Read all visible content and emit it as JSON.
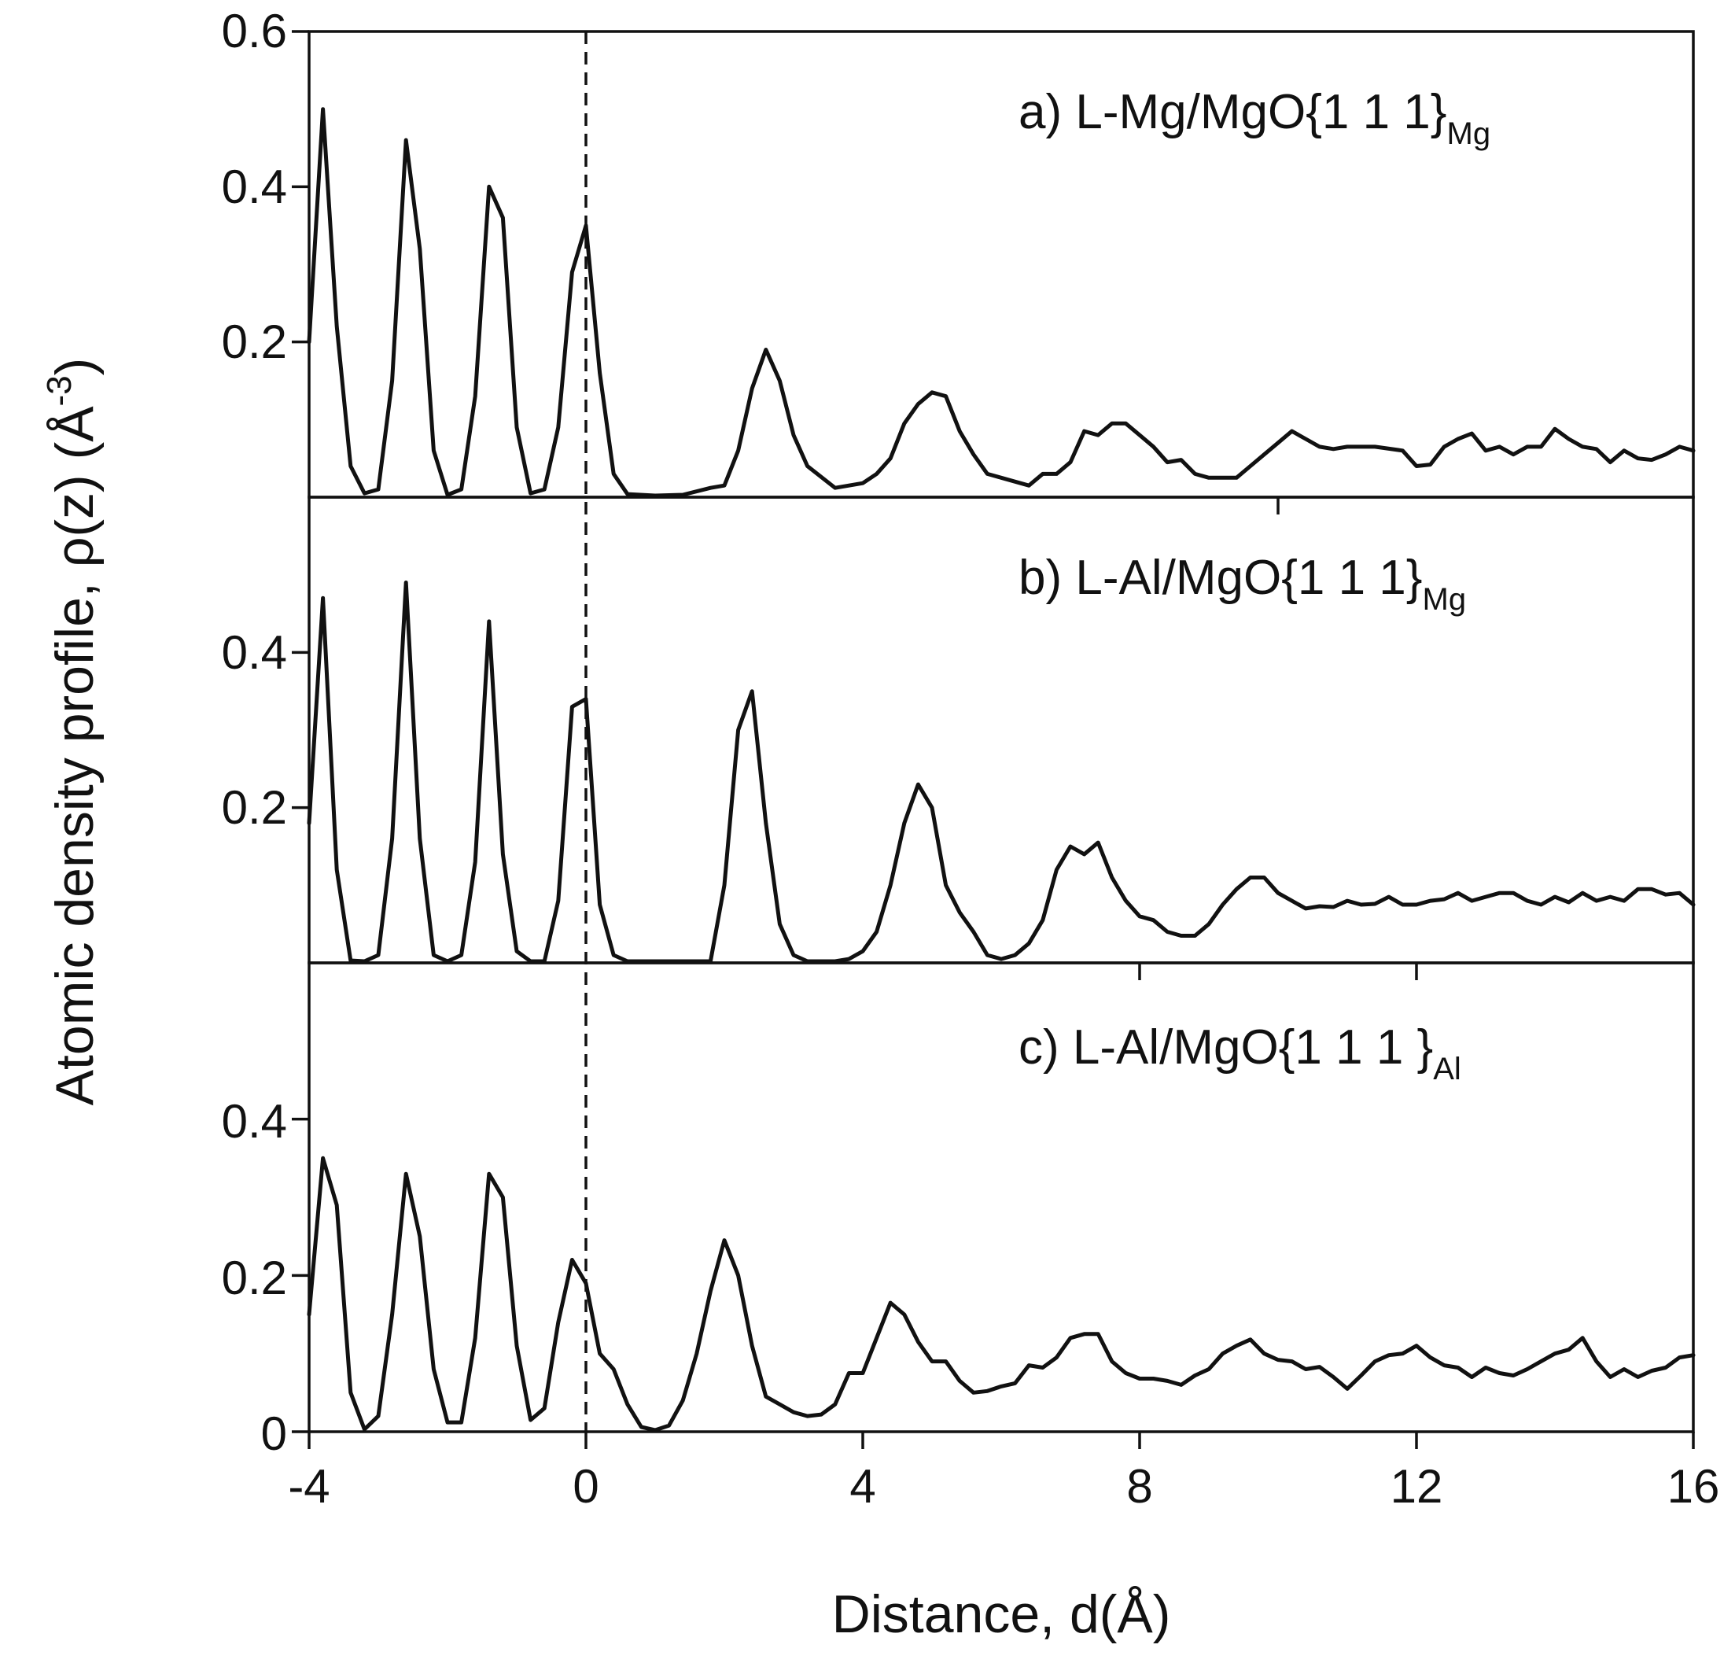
{
  "chart_data": {
    "type": "line",
    "xlabel": "Distance, d(Å)",
    "ylabel": "Atomic density profile, ρ(z) (Å",
    "ylabel_sup": "-3",
    "ylabel_close": ")",
    "xlim": [
      -4,
      16
    ],
    "x_ticks": [
      -4,
      0,
      4,
      8,
      12,
      16
    ],
    "x_tick_labels": [
      "-4",
      "0",
      "4",
      "8",
      "12",
      "16"
    ],
    "reference_line_x": 0,
    "panels": [
      {
        "label": "a) L-Mg/MgO{1 1 1}",
        "label_sub": "Mg",
        "ylim": [
          0,
          0.6
        ],
        "y_tick_labels": [
          {
            "value": 0.6,
            "text": "0.6"
          },
          {
            "value": 0.4,
            "text": "0.4"
          },
          {
            "value": 0.2,
            "text": "0.2"
          }
        ],
        "x_ticks_shown": [
          10
        ],
        "x": [
          -4.0,
          -3.8,
          -3.6,
          -3.4,
          -3.2,
          -3.0,
          -2.8,
          -2.6,
          -2.4,
          -2.2,
          -2.0,
          -1.8,
          -1.6,
          -1.4,
          -1.2,
          -1.0,
          -0.8,
          -0.6,
          -0.4,
          -0.2,
          0.0,
          0.2,
          0.4,
          0.6,
          1.0,
          1.4,
          1.8,
          2.0,
          2.2,
          2.4,
          2.6,
          2.8,
          3.0,
          3.2,
          3.6,
          3.8,
          4.0,
          4.2,
          4.4,
          4.6,
          4.8,
          5.0,
          5.2,
          5.4,
          5.6,
          5.8,
          6.0,
          6.4,
          6.6,
          6.8,
          7.0,
          7.2,
          7.4,
          7.6,
          7.8,
          8.0,
          8.2,
          8.4,
          8.6,
          8.8,
          9.0,
          9.4,
          9.6,
          9.8,
          10.0,
          10.2,
          10.4,
          10.6,
          10.8,
          11.0,
          11.4,
          11.8,
          12.0,
          12.2,
          12.4,
          12.6,
          12.8,
          13.0,
          13.2,
          13.4,
          13.6,
          13.8,
          14.0,
          14.2,
          14.4,
          14.6,
          14.8,
          15.0,
          15.2,
          15.4,
          15.6,
          15.8,
          16.0
        ],
        "y": [
          0.2,
          0.5,
          0.22,
          0.04,
          0.005,
          0.01,
          0.15,
          0.46,
          0.32,
          0.06,
          0.003,
          0.01,
          0.13,
          0.4,
          0.36,
          0.09,
          0.005,
          0.01,
          0.09,
          0.29,
          0.35,
          0.16,
          0.03,
          0.004,
          0.002,
          0.003,
          0.012,
          0.015,
          0.06,
          0.14,
          0.19,
          0.15,
          0.08,
          0.04,
          0.012,
          0.015,
          0.018,
          0.03,
          0.05,
          0.095,
          0.12,
          0.135,
          0.13,
          0.085,
          0.055,
          0.03,
          0.025,
          0.015,
          0.03,
          0.03,
          0.045,
          0.085,
          0.08,
          0.095,
          0.095,
          0.08,
          0.065,
          0.045,
          0.048,
          0.03,
          0.025,
          0.025,
          0.04,
          0.055,
          0.07,
          0.085,
          0.075,
          0.065,
          0.062,
          0.065,
          0.065,
          0.06,
          0.04,
          0.042,
          0.065,
          0.075,
          0.082,
          0.06,
          0.065,
          0.055,
          0.065,
          0.065,
          0.088,
          0.075,
          0.065,
          0.062,
          0.045,
          0.06,
          0.05,
          0.048,
          0.055,
          0.065,
          0.06
        ]
      },
      {
        "label": "b) L-Al/MgO{1 1 1}",
        "label_sub": "Mg",
        "ylim": [
          0,
          0.6
        ],
        "y_tick_labels": [
          {
            "value": 0.4,
            "text": "0.4"
          },
          {
            "value": 0.2,
            "text": "0.2"
          }
        ],
        "x_ticks_shown": [
          8,
          12
        ],
        "x": [
          -4.0,
          -3.8,
          -3.6,
          -3.4,
          -3.2,
          -3.0,
          -2.8,
          -2.6,
          -2.4,
          -2.2,
          -2.0,
          -1.8,
          -1.6,
          -1.4,
          -1.2,
          -1.0,
          -0.8,
          -0.6,
          -0.4,
          -0.2,
          0.0,
          0.2,
          0.4,
          0.6,
          1.8,
          2.0,
          2.2,
          2.4,
          2.6,
          2.8,
          3.0,
          3.2,
          3.4,
          3.6,
          3.8,
          4.0,
          4.2,
          4.4,
          4.6,
          4.8,
          5.0,
          5.2,
          5.4,
          5.6,
          5.8,
          6.0,
          6.2,
          6.4,
          6.6,
          6.8,
          7.0,
          7.2,
          7.4,
          7.6,
          7.8,
          8.0,
          8.2,
          8.4,
          8.6,
          8.8,
          9.0,
          9.2,
          9.4,
          9.6,
          9.8,
          10.0,
          10.2,
          10.4,
          10.6,
          10.8,
          11.0,
          11.2,
          11.4,
          11.6,
          11.8,
          12.0,
          12.2,
          12.4,
          12.6,
          12.8,
          13.0,
          13.2,
          13.4,
          13.6,
          13.8,
          14.0,
          14.2,
          14.4,
          14.6,
          14.8,
          15.0,
          15.2,
          15.4,
          15.6,
          15.8,
          16.0
        ],
        "y": [
          0.18,
          0.47,
          0.12,
          0.003,
          0.002,
          0.01,
          0.16,
          0.49,
          0.16,
          0.01,
          0.002,
          0.01,
          0.13,
          0.44,
          0.14,
          0.015,
          0.002,
          0.002,
          0.08,
          0.33,
          0.34,
          0.075,
          0.01,
          0.002,
          0.002,
          0.1,
          0.3,
          0.35,
          0.18,
          0.05,
          0.01,
          0.002,
          0.002,
          0.002,
          0.005,
          0.015,
          0.04,
          0.1,
          0.18,
          0.23,
          0.2,
          0.1,
          0.065,
          0.04,
          0.01,
          0.005,
          0.01,
          0.025,
          0.055,
          0.12,
          0.15,
          0.14,
          0.155,
          0.11,
          0.08,
          0.06,
          0.055,
          0.04,
          0.035,
          0.035,
          0.05,
          0.075,
          0.095,
          0.11,
          0.11,
          0.09,
          0.08,
          0.07,
          0.073,
          0.072,
          0.08,
          0.075,
          0.076,
          0.085,
          0.075,
          0.075,
          0.08,
          0.082,
          0.09,
          0.08,
          0.085,
          0.09,
          0.09,
          0.08,
          0.075,
          0.085,
          0.078,
          0.09,
          0.08,
          0.085,
          0.08,
          0.095,
          0.095,
          0.088,
          0.09,
          0.075
        ]
      },
      {
        "label": "c) L-Al/MgO{1 1 1 }",
        "label_sub": "Al",
        "ylim": [
          0,
          0.6
        ],
        "y_tick_labels": [
          {
            "value": 0.4,
            "text": "0.4"
          },
          {
            "value": 0.2,
            "text": "0.2"
          },
          {
            "value": 0,
            "text": "0"
          }
        ],
        "x_ticks_shown": [
          -4,
          0,
          4,
          8,
          12,
          16
        ],
        "x": [
          -4.0,
          -3.8,
          -3.6,
          -3.4,
          -3.2,
          -3.0,
          -2.8,
          -2.6,
          -2.4,
          -2.2,
          -2.0,
          -1.8,
          -1.6,
          -1.4,
          -1.2,
          -1.0,
          -0.8,
          -0.6,
          -0.4,
          -0.2,
          0.0,
          0.2,
          0.4,
          0.6,
          0.8,
          1.0,
          1.2,
          1.4,
          1.6,
          1.8,
          2.0,
          2.2,
          2.4,
          2.6,
          2.8,
          3.0,
          3.2,
          3.4,
          3.6,
          3.8,
          4.0,
          4.2,
          4.4,
          4.6,
          4.8,
          5.0,
          5.2,
          5.4,
          5.6,
          5.8,
          6.0,
          6.2,
          6.4,
          6.6,
          6.8,
          7.0,
          7.2,
          7.4,
          7.6,
          7.8,
          8.0,
          8.2,
          8.4,
          8.6,
          8.8,
          9.0,
          9.2,
          9.4,
          9.6,
          9.8,
          10.0,
          10.2,
          10.4,
          10.6,
          10.8,
          11.0,
          11.2,
          11.4,
          11.6,
          11.8,
          12.0,
          12.2,
          12.4,
          12.6,
          12.8,
          13.0,
          13.2,
          13.4,
          13.6,
          13.8,
          14.0,
          14.2,
          14.4,
          14.6,
          14.8,
          15.0,
          15.2,
          15.4,
          15.6,
          15.8,
          16.0
        ],
        "y": [
          0.15,
          0.35,
          0.29,
          0.05,
          0.003,
          0.02,
          0.15,
          0.33,
          0.25,
          0.08,
          0.012,
          0.012,
          0.12,
          0.33,
          0.3,
          0.11,
          0.015,
          0.03,
          0.14,
          0.22,
          0.19,
          0.1,
          0.08,
          0.035,
          0.006,
          0.002,
          0.008,
          0.04,
          0.1,
          0.18,
          0.245,
          0.2,
          0.11,
          0.045,
          0.035,
          0.025,
          0.02,
          0.022,
          0.035,
          0.075,
          0.075,
          0.12,
          0.165,
          0.15,
          0.115,
          0.09,
          0.09,
          0.065,
          0.05,
          0.052,
          0.058,
          0.062,
          0.085,
          0.082,
          0.095,
          0.12,
          0.125,
          0.125,
          0.09,
          0.075,
          0.068,
          0.068,
          0.065,
          0.06,
          0.072,
          0.08,
          0.1,
          0.11,
          0.118,
          0.1,
          0.092,
          0.09,
          0.08,
          0.083,
          0.07,
          0.055,
          0.072,
          0.09,
          0.098,
          0.1,
          0.11,
          0.095,
          0.085,
          0.082,
          0.07,
          0.082,
          0.075,
          0.072,
          0.08,
          0.09,
          0.1,
          0.105,
          0.12,
          0.09,
          0.07,
          0.08,
          0.07,
          0.078,
          0.082,
          0.095,
          0.098
        ]
      }
    ]
  }
}
